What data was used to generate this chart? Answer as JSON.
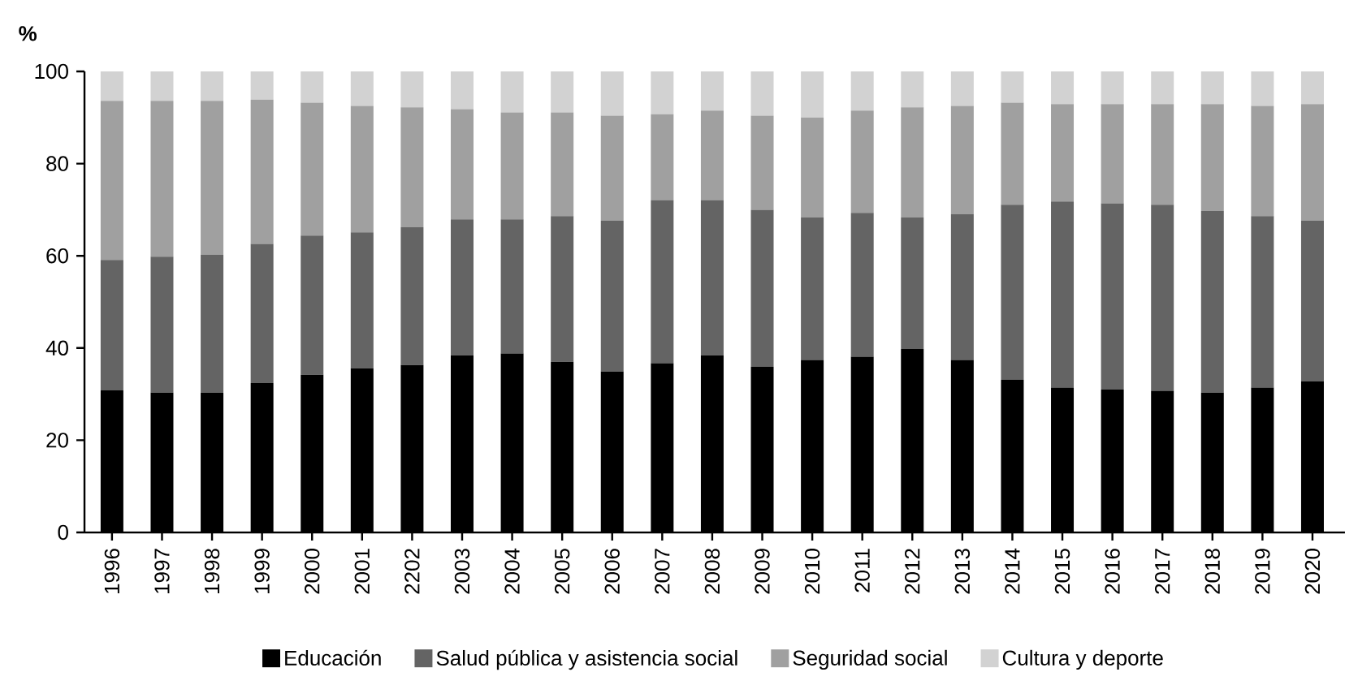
{
  "chart_data": {
    "type": "bar",
    "stacked": true,
    "ylabel": "%",
    "categories": [
      "1996",
      "1997",
      "1998",
      "1999",
      "2000",
      "2001",
      "2202",
      "2003",
      "2004",
      "2005",
      "2006",
      "2007",
      "2008",
      "2009",
      "2010",
      "2011",
      "2012",
      "2013",
      "2014",
      "2015",
      "2016",
      "2017",
      "2018",
      "2019",
      "2020"
    ],
    "series": [
      {
        "name": "Educación",
        "color": "#000000",
        "values": [
          30.8,
          30.3,
          30.3,
          32.4,
          34.2,
          35.6,
          36.3,
          38.4,
          38.8,
          37.0,
          34.9,
          36.7,
          38.4,
          35.9,
          37.4,
          38.1,
          39.8,
          37.4,
          33.1,
          31.4,
          31.0,
          30.7,
          30.3,
          31.4,
          32.8
        ]
      },
      {
        "name": "Salud pública y asistencia social",
        "color": "#646464",
        "values": [
          28.3,
          29.5,
          29.9,
          30.2,
          30.2,
          29.5,
          29.9,
          29.5,
          29.1,
          31.6,
          32.7,
          35.4,
          33.7,
          34.1,
          30.9,
          31.2,
          28.5,
          31.6,
          38.0,
          40.4,
          40.4,
          40.4,
          39.4,
          37.2,
          34.8
        ]
      },
      {
        "name": "Seguridad social",
        "color": "#a0a0a0",
        "values": [
          34.5,
          33.8,
          33.4,
          31.3,
          28.8,
          27.4,
          26.0,
          23.9,
          23.2,
          22.5,
          22.8,
          18.6,
          19.4,
          20.4,
          21.7,
          22.2,
          23.9,
          23.5,
          22.1,
          21.1,
          21.5,
          21.8,
          23.2,
          23.9,
          25.3
        ]
      },
      {
        "name": "Cultura y deporte",
        "color": "#d2d2d2",
        "values": [
          6.4,
          6.4,
          6.4,
          6.1,
          6.8,
          7.5,
          7.8,
          8.2,
          8.9,
          8.9,
          9.6,
          9.3,
          8.5,
          9.6,
          10.0,
          8.5,
          7.8,
          7.5,
          6.8,
          7.1,
          7.1,
          7.1,
          7.1,
          7.5,
          7.1
        ]
      }
    ],
    "ylim": [
      0,
      100
    ],
    "yticks": [
      0,
      20,
      40,
      60,
      80,
      100
    ],
    "legend": "bottom",
    "grid": false
  }
}
